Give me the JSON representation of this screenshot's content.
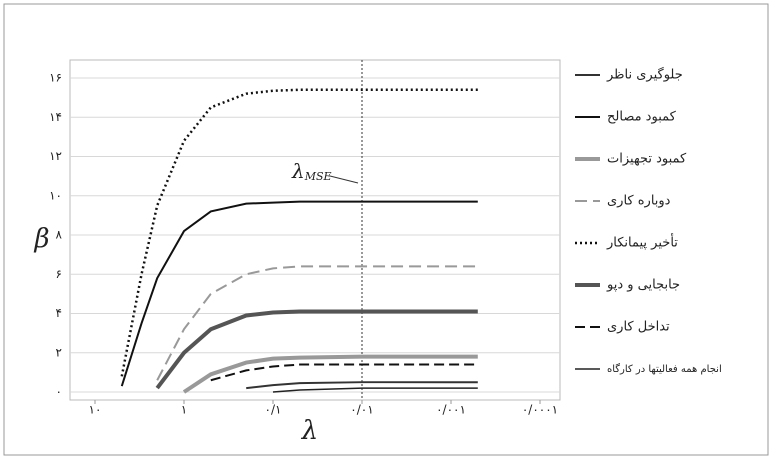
{
  "chart_data": {
    "type": "line",
    "x_label": "λ",
    "y_label": "β",
    "annotation": {
      "text": "λ",
      "subscript": "MSE",
      "x": 0.01
    },
    "x": [
      5,
      3,
      2,
      1,
      0.5,
      0.2,
      0.1,
      0.05,
      0.01,
      0.001,
      0.0005
    ],
    "xlim": [
      10,
      0.0001
    ],
    "xlog": true,
    "xticks": [
      {
        "value": 10,
        "label": "۱۰"
      },
      {
        "value": 1,
        "label": "۱"
      },
      {
        "value": 0.1,
        "label": "۰/۱"
      },
      {
        "value": 0.01,
        "label": "۰/۰۱"
      },
      {
        "value": 0.001,
        "label": "۰/۰۰۱"
      },
      {
        "value": 0.0001,
        "label": "۰/۰۰۰۱"
      }
    ],
    "ylim": [
      0,
      16
    ],
    "yticks": [
      {
        "value": 0,
        "label": "۰"
      },
      {
        "value": 2,
        "label": "۲"
      },
      {
        "value": 4,
        "label": "۴"
      },
      {
        "value": 6,
        "label": "۶"
      },
      {
        "value": 8,
        "label": "۸"
      },
      {
        "value": 10,
        "label": "۱۰"
      },
      {
        "value": 12,
        "label": "۱۲"
      },
      {
        "value": 14,
        "label": "۱۴"
      },
      {
        "value": 16,
        "label": "۱۶"
      }
    ],
    "grid": true,
    "series": [
      {
        "name": "جلوگیری ناظر",
        "color": "#333333",
        "width": 2,
        "dash": "none",
        "values": [
          null,
          null,
          null,
          null,
          null,
          0.2,
          0.35,
          0.45,
          0.5,
          0.5,
          0.5
        ]
      },
      {
        "name": "کمبود مصالح",
        "color": "#111111",
        "width": 2,
        "dash": "none",
        "values": [
          0.3,
          3.5,
          5.8,
          8.2,
          9.2,
          9.6,
          9.65,
          9.7,
          9.7,
          9.7,
          9.7
        ]
      },
      {
        "name": "کمبود تجهیزات",
        "color": "#999999",
        "width": 4,
        "dash": "none",
        "values": [
          null,
          null,
          null,
          0,
          0.9,
          1.5,
          1.7,
          1.75,
          1.8,
          1.8,
          1.8
        ]
      },
      {
        "name": "دوباره کاری",
        "color": "#999999",
        "width": 2,
        "dash": "12 6",
        "values": [
          null,
          null,
          0.6,
          3.2,
          5,
          6,
          6.3,
          6.4,
          6.4,
          6.4,
          6.4
        ]
      },
      {
        "name": "تأخیر پیمانکار",
        "color": "#111111",
        "width": 2.5,
        "dash": "2 3",
        "values": [
          0.8,
          6,
          9.5,
          12.8,
          14.5,
          15.2,
          15.35,
          15.4,
          15.4,
          15.4,
          15.4
        ]
      },
      {
        "name": "جابجایی و دپو",
        "color": "#555555",
        "width": 4,
        "dash": "none",
        "values": [
          null,
          null,
          0.2,
          2,
          3.2,
          3.9,
          4.05,
          4.1,
          4.1,
          4.1,
          4.1
        ]
      },
      {
        "name": "تداخل کاری",
        "color": "#111111",
        "width": 2,
        "dash": "10 5",
        "values": [
          null,
          null,
          null,
          null,
          0.6,
          1.1,
          1.3,
          1.4,
          1.4,
          1.4,
          1.4
        ]
      },
      {
        "name": "انجام همه فعالیتها در کارگاه",
        "color": "#222222",
        "width": 1.5,
        "dash": "none",
        "values": [
          null,
          null,
          null,
          null,
          null,
          null,
          0,
          0.1,
          0.2,
          0.2,
          0.2
        ]
      }
    ]
  }
}
